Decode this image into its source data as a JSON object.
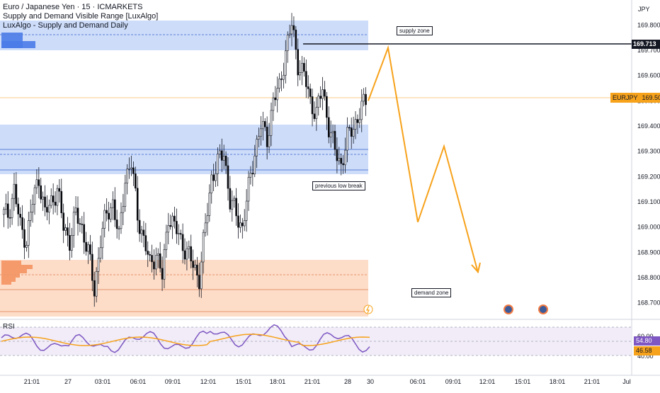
{
  "header": {
    "title": "Euro / Japanese Yen · 15 · ICMARKETS",
    "indicator_1": "Supply and Demand Visible Range [LuxAlgo]",
    "indicator_2": "LuxAlgo - Supply and Demand Daily"
  },
  "price_axis": {
    "currency": "JPY",
    "ticks": [
      "169.800",
      "169.700",
      "169.600",
      "169.500",
      "169.400",
      "169.300",
      "169.200",
      "169.100",
      "169.000",
      "168.900",
      "168.800",
      "168.700"
    ],
    "last_price_label": "169.713",
    "symbol_label": "EURJPY",
    "symbol_price": "169.501"
  },
  "time_axis": {
    "labels": [
      "21:01",
      "27",
      "03:01",
      "06:01",
      "09:01",
      "12:01",
      "15:01",
      "18:01",
      "21:01",
      "28",
      "30",
      "06:01",
      "09:01",
      "12:01",
      "15:01",
      "18:01",
      "21:01",
      "Jul"
    ]
  },
  "annotations": {
    "supply_zone": "supply zone",
    "previous_low_break": "previous low break",
    "demand_zone": "demand zone"
  },
  "rsi": {
    "label": "RSI",
    "value_1": "54.80",
    "value_2": "46.58",
    "ticks": [
      "60.00",
      "40.00"
    ]
  },
  "colors": {
    "bull": "#ffffff",
    "bear": "#000000",
    "supply": "#bcd0f7",
    "demand": "#fdd8c2",
    "projection": "#f7a21b",
    "rsi_line": "#7e57c2",
    "rsi_ma": "#f7a21b"
  },
  "chart_data": {
    "type": "candlestick",
    "title": "Euro / Japanese Yen · 15 · ICMARKETS",
    "ylim": [
      168.66,
      169.86
    ],
    "price_levels": {
      "supply_zone_upper": [
        169.744,
        169.85
      ],
      "supply_zone_mid": [
        169.215,
        169.4
      ],
      "demand_zone": [
        168.66,
        168.86
      ],
      "last_price": 169.713,
      "current_price": 169.501
    },
    "projection_path": [
      {
        "time": "30 00:00",
        "price": 169.5
      },
      {
        "time": "30 01:00",
        "price": 169.71
      },
      {
        "time": "30 05:00",
        "price": 169.02
      },
      {
        "time": "30 08:00",
        "price": 169.32
      },
      {
        "time": "30 11:00",
        "price": 168.82
      }
    ],
    "close_series_approx": [
      169.05,
      169.15,
      169.0,
      168.95,
      169.1,
      169.2,
      169.05,
      169.1,
      169.15,
      169.0,
      168.95,
      169.05,
      169.0,
      168.9,
      168.75,
      168.95,
      169.05,
      169.1,
      168.95,
      169.2,
      169.25,
      169.05,
      168.95,
      168.85,
      168.9,
      168.8,
      169.05,
      169.0,
      168.95,
      168.9,
      168.85,
      168.8,
      169.0,
      169.2,
      169.25,
      169.3,
      169.1,
      169.05,
      169.0,
      169.15,
      169.3,
      169.4,
      169.35,
      169.5,
      169.55,
      169.7,
      169.8,
      169.65,
      169.6,
      169.5,
      169.45,
      169.55,
      169.4,
      169.3,
      169.25,
      169.35,
      169.4,
      169.45,
      169.5
    ]
  }
}
